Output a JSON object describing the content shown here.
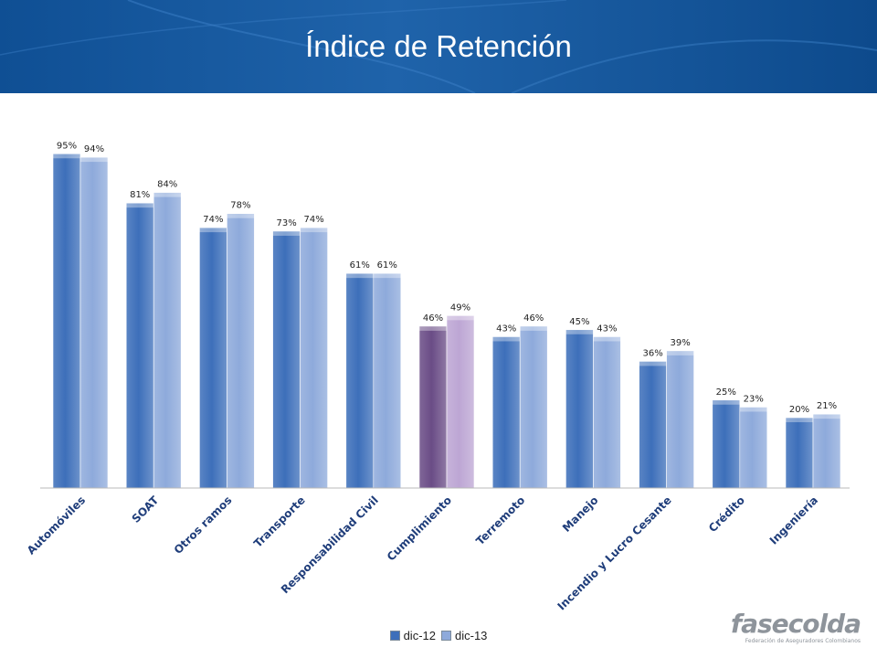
{
  "header": {
    "title": "Índice de Retención"
  },
  "chart_data": {
    "type": "bar",
    "categories": [
      "Automóviles",
      "SOAT",
      "Otros ramos",
      "Transporte",
      "Responsabilidad Civil",
      "Cumplimiento",
      "Terremoto",
      "Manejo",
      "Incendio y Lucro Cesante",
      "Crédito",
      "Ingeniería"
    ],
    "series": [
      {
        "name": "dic-12",
        "values": [
          95,
          81,
          74,
          73,
          61,
          46,
          43,
          45,
          36,
          25,
          20
        ],
        "color": "#3d6fba"
      },
      {
        "name": "dic-13",
        "values": [
          94,
          84,
          78,
          74,
          61,
          49,
          46,
          43,
          39,
          23,
          21
        ],
        "color": "#8eaadb"
      }
    ],
    "highlight": {
      "category": "Cumplimiento",
      "colors": [
        "#6a4c86",
        "#bda6d4"
      ]
    },
    "value_suffix": "%",
    "ylim": [
      0,
      100
    ],
    "grid": false,
    "legend": "bottom-center"
  },
  "logo": {
    "name": "fasecolda",
    "tagline": "Federación de Aseguradores Colombianos"
  }
}
